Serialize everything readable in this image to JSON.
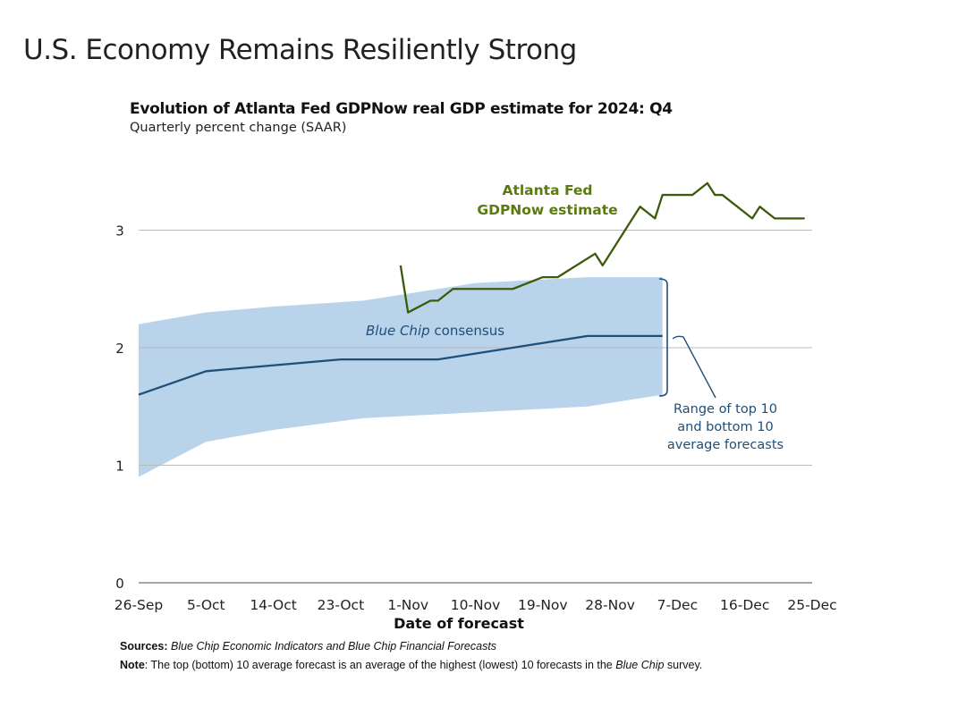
{
  "slide_title": "U.S. Economy Remains Resiliently Strong",
  "chart_data": {
    "type": "line",
    "title": "Evolution of Atlanta Fed GDPNow real GDP estimate for 2024: Q4",
    "subtitle": "Quarterly percent change (SAAR)",
    "xlabel": "Date of forecast",
    "ylabel": "",
    "ylim": [
      0,
      3.5
    ],
    "yticks": [
      0,
      1,
      2,
      3
    ],
    "xticks": [
      "26-Sep",
      "5-Oct",
      "14-Oct",
      "23-Oct",
      "1-Nov",
      "10-Nov",
      "19-Nov",
      "28-Nov",
      "7-Dec",
      "16-Dec",
      "25-Dec"
    ],
    "xtick_dates": [
      "2024-09-26",
      "2024-10-05",
      "2024-10-14",
      "2024-10-23",
      "2024-11-01",
      "2024-11-10",
      "2024-11-19",
      "2024-11-28",
      "2024-12-07",
      "2024-12-16",
      "2024-12-25"
    ],
    "grid": "horizontal",
    "series": [
      {
        "name": "Atlanta Fed GDPNow estimate",
        "color": "#3d5a0a",
        "x": [
          "2024-10-31",
          "2024-11-01",
          "2024-11-04",
          "2024-11-05",
          "2024-11-07",
          "2024-11-15",
          "2024-11-19",
          "2024-11-21",
          "2024-11-26",
          "2024-11-27",
          "2024-12-02",
          "2024-12-04",
          "2024-12-05",
          "2024-12-09",
          "2024-12-11",
          "2024-12-12",
          "2024-12-13",
          "2024-12-17",
          "2024-12-18",
          "2024-12-20",
          "2024-12-24"
        ],
        "values": [
          2.7,
          2.3,
          2.4,
          2.4,
          2.5,
          2.5,
          2.6,
          2.6,
          2.8,
          2.7,
          3.2,
          3.1,
          3.3,
          3.3,
          3.4,
          3.3,
          3.3,
          3.1,
          3.2,
          3.1,
          3.1
        ]
      },
      {
        "name": "Blue Chip consensus",
        "color": "#1f4e79",
        "x": [
          "2024-09-26",
          "2024-10-05",
          "2024-10-23",
          "2024-11-05",
          "2024-11-25",
          "2024-12-05"
        ],
        "values": [
          1.6,
          1.8,
          1.9,
          1.9,
          2.1,
          2.1
        ]
      }
    ],
    "band": {
      "name": "Range of top 10 and bottom 10 average forecasts",
      "color": "#b8d3ea",
      "x": [
        "2024-09-26",
        "2024-10-05",
        "2024-10-14",
        "2024-10-26",
        "2024-11-10",
        "2024-11-25",
        "2024-12-05"
      ],
      "upper": [
        2.2,
        2.3,
        2.35,
        2.4,
        2.55,
        2.6,
        2.6
      ],
      "lower": [
        0.9,
        1.2,
        1.3,
        1.4,
        1.45,
        1.5,
        1.6
      ]
    },
    "annotations": {
      "gdpnow_line1": "Atlanta Fed",
      "gdpnow_line2": "GDPNow estimate",
      "consensus_italic": "Blue Chip",
      "consensus_rest": " consensus",
      "range_line1": "Range of top 10",
      "range_line2": "and bottom 10",
      "range_line3": "average forecasts"
    }
  },
  "footer": {
    "sources_label": "Sources:",
    "sources_text": "Blue Chip Economic Indicators and Blue Chip Financial Forecasts",
    "note_label": "Note",
    "note_text_1": ": The top (bottom) 10 average forecast is an average of the highest (lowest) 10 forecasts in the ",
    "note_italic": "Blue Chip",
    "note_text_2": "survey."
  }
}
